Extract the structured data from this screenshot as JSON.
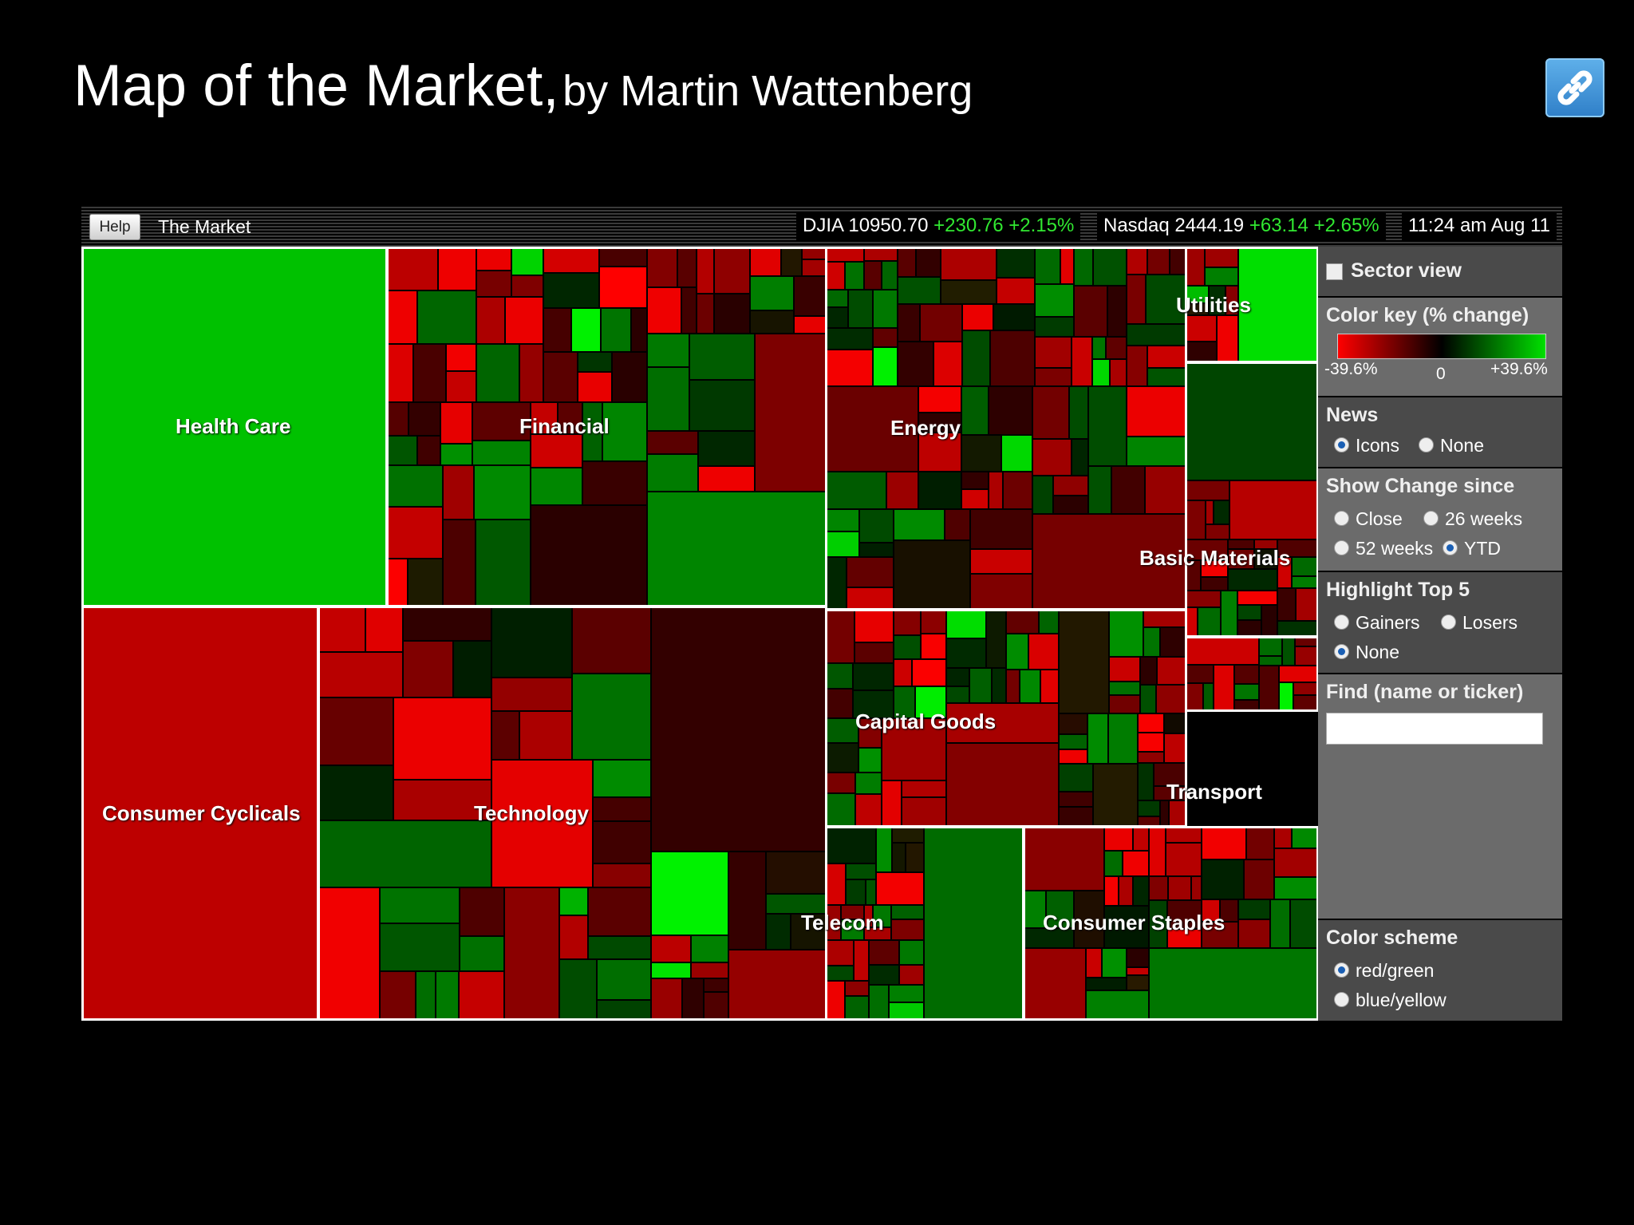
{
  "slide": {
    "title_main": "Map of the Market,",
    "title_by": "by Martin Wattenberg",
    "link_icon": "link-icon"
  },
  "topbar": {
    "help_label": "Help",
    "market_label": "The Market",
    "djia": {
      "label": "DJIA 10950.70",
      "change": "+230.76 +2.15%"
    },
    "nasdaq": {
      "label": "Nasdaq 2444.19",
      "change": "+63.14 +2.65%"
    },
    "timestamp": "11:24 am Aug 11"
  },
  "sectors": [
    {
      "name": "Health Care"
    },
    {
      "name": "Financial"
    },
    {
      "name": "Energy"
    },
    {
      "name": "Utilities"
    },
    {
      "name": "Basic Materials"
    },
    {
      "name": "Consumer Cyclicals"
    },
    {
      "name": "Technology"
    },
    {
      "name": "Capital Goods"
    },
    {
      "name": "Transport"
    },
    {
      "name": "Telecom"
    },
    {
      "name": "Consumer Staples"
    }
  ],
  "panel": {
    "sector_view": {
      "label": "Sector view",
      "checked": false
    },
    "color_key": {
      "heading": "Color key (% change)",
      "min": "-39.6%",
      "mid": "0",
      "max": "+39.6%",
      "colors": {
        "negative": "#ff0000",
        "neutral": "#000000",
        "positive": "#00e000"
      }
    },
    "news": {
      "heading": "News",
      "options": [
        "Icons",
        "None"
      ],
      "selected": "Icons"
    },
    "show_change": {
      "heading": "Show Change since",
      "options": [
        "Close",
        "26 weeks",
        "52 weeks",
        "YTD"
      ],
      "selected": "YTD"
    },
    "highlight": {
      "heading": "Highlight Top 5",
      "options": [
        "Gainers",
        "Losers",
        "None"
      ],
      "selected": "None"
    },
    "find": {
      "heading": "Find (name or ticker)",
      "value": ""
    },
    "color_scheme": {
      "heading": "Color scheme",
      "options": [
        "red/green",
        "blue/yellow"
      ],
      "selected": "red/green"
    }
  }
}
